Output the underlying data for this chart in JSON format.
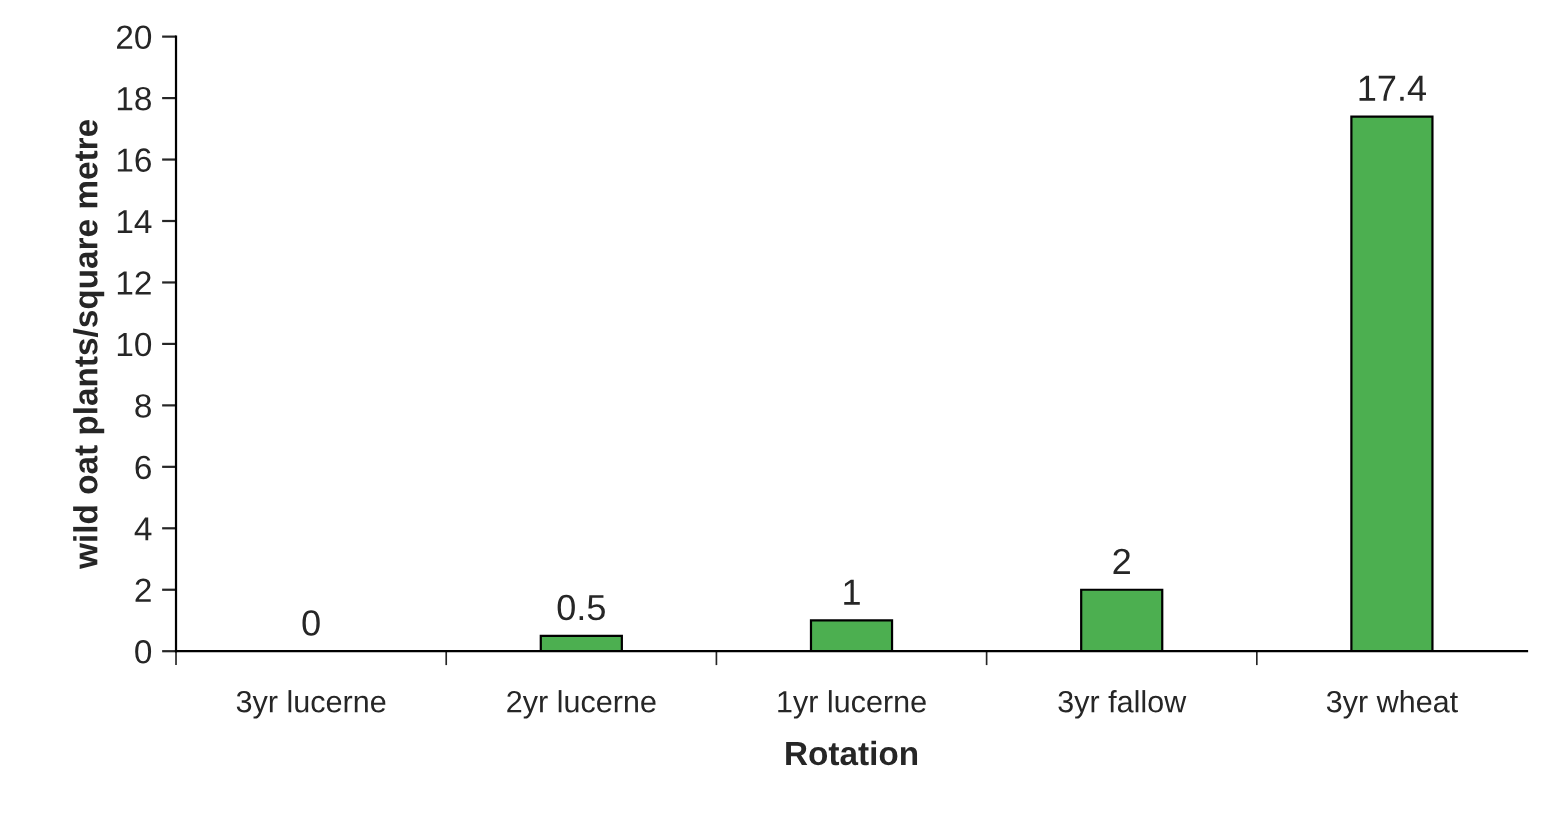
{
  "chart_data": {
    "type": "bar",
    "xlabel": "Rotation",
    "ylabel": "wild oat plants/square metre",
    "categories": [
      "3yr lucerne",
      "2yr lucerne",
      "1yr lucerne",
      "3yr fallow",
      "3yr wheat"
    ],
    "values": [
      0,
      0.5,
      1,
      2,
      17.4
    ],
    "color": "#4caf50",
    "ylim": [
      0,
      20
    ],
    "yticks": [
      0,
      2,
      4,
      6,
      8,
      10,
      12,
      14,
      16,
      18,
      20
    ],
    "data_labels": true,
    "grid": false,
    "legend": false
  }
}
